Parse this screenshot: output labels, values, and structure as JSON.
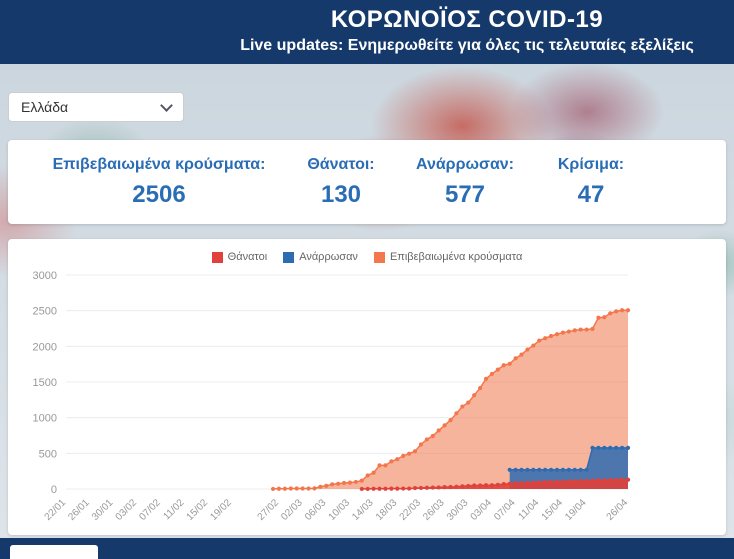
{
  "header": {
    "title": "ΚΟΡΩΝΟΪΟΣ COVID-19",
    "subtitle": "Live updates: Ενημερωθείτε για όλες τις τελευταίες εξελίξεις"
  },
  "country_select": {
    "value": "Ελλάδα"
  },
  "stats": [
    {
      "label": "Επιβεβαιωμένα κρούσματα:",
      "value": "2506"
    },
    {
      "label": "Θάνατοι:",
      "value": "130"
    },
    {
      "label": "Ανάρρωσαν:",
      "value": "577"
    },
    {
      "label": "Κρίσιμα:",
      "value": "47"
    }
  ],
  "colors": {
    "header_bg": "#16396b",
    "stat_blue": "#2a6db5",
    "deaths_red": "#e0413a",
    "recovered_blue": "#2e6bb0",
    "confirmed_orange": "#f4764c"
  },
  "chart_data": {
    "type": "area",
    "ylim": [
      0,
      3000
    ],
    "y_ticks": [
      0,
      500,
      1000,
      1500,
      2000,
      2500,
      3000
    ],
    "x_range": [
      "22/01",
      "26/04"
    ],
    "x_tick_labels": [
      "22/01",
      "26/01",
      "30/01",
      "03/02",
      "07/02",
      "11/02",
      "15/02",
      "19/02",
      "27/02",
      "02/03",
      "06/03",
      "10/03",
      "14/03",
      "18/03",
      "22/03",
      "26/03",
      "30/03",
      "03/04",
      "07/04",
      "11/04",
      "15/04",
      "19/04",
      "26/04"
    ],
    "legend_position": "top",
    "grid": "horizontal",
    "series": [
      {
        "name": "Θάνατοι",
        "color": "#e0413a",
        "fill": "rgba(224,65,58,0.9)",
        "start": "12/03",
        "values": [
          1,
          1,
          3,
          4,
          4,
          5,
          5,
          6,
          6,
          13,
          15,
          17,
          20,
          22,
          26,
          28,
          32,
          38,
          43,
          49,
          50,
          53,
          53,
          59,
          68,
          73,
          81,
          81,
          86,
          90,
          93,
          98,
          99,
          101,
          102,
          105,
          108,
          110,
          113,
          116,
          121,
          121,
          125,
          127,
          130,
          130
        ]
      },
      {
        "name": "Ανάρρωσαν",
        "color": "#2e6bb0",
        "fill": "rgba(46,107,176,0.85)",
        "start": "06/04",
        "values": [
          269,
          269,
          269,
          269,
          269,
          269,
          269,
          269,
          269,
          269,
          269,
          269,
          269,
          269,
          577,
          577,
          577,
          577,
          577,
          577,
          577
        ]
      },
      {
        "name": "Επιβεβαιωμένα κρούσματα",
        "color": "#f4764c",
        "fill": "rgba(242,130,92,0.6)",
        "start": "26/02",
        "values": [
          1,
          3,
          4,
          7,
          7,
          7,
          7,
          9,
          31,
          45,
          66,
          73,
          84,
          89,
          99,
          117,
          190,
          228,
          331,
          331,
          387,
          418,
          464,
          495,
          530,
          624,
          695,
          743,
          821,
          892,
          966,
          1061,
          1156,
          1212,
          1314,
          1415,
          1544,
          1613,
          1673,
          1735,
          1755,
          1832,
          1884,
          1955,
          2011,
          2081,
          2114,
          2145,
          2170,
          2192,
          2207,
          2224,
          2235,
          2235,
          2245,
          2401,
          2408,
          2463,
          2490,
          2506,
          2506
        ]
      }
    ]
  }
}
